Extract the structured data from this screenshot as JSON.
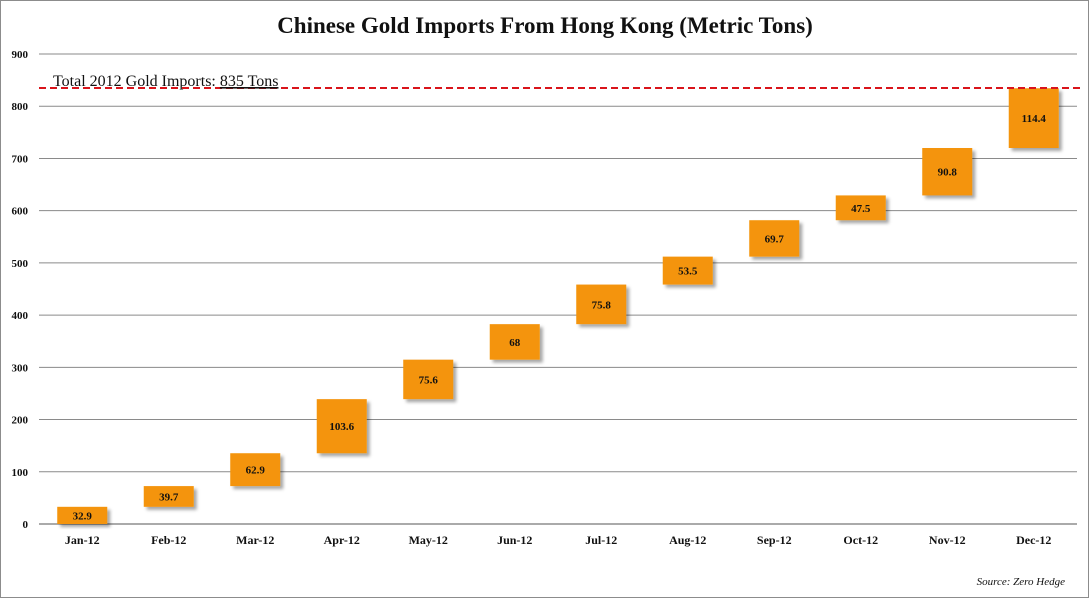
{
  "chart_data": {
    "type": "bar",
    "subtype": "waterfall",
    "title": "Chinese Gold Imports From Hong Kong (Metric Tons)",
    "categories": [
      "Jan-12",
      "Feb-12",
      "Mar-12",
      "Apr-12",
      "May-12",
      "Jun-12",
      "Jul-12",
      "Aug-12",
      "Sep-12",
      "Oct-12",
      "Nov-12",
      "Dec-12"
    ],
    "values": [
      32.9,
      39.7,
      62.9,
      103.6,
      75.6,
      68,
      75.8,
      53.5,
      69.7,
      47.5,
      90.8,
      114.4
    ],
    "value_labels": [
      "32.9",
      "39.7",
      "62.9",
      "103.6",
      "75.6",
      "68",
      "75.8",
      "53.5",
      "69.7",
      "47.5",
      "90.8",
      "114.4"
    ],
    "ylim": [
      0,
      900
    ],
    "yticks": [
      0,
      100,
      200,
      300,
      400,
      500,
      600,
      700,
      800,
      900
    ],
    "ytick_labels": [
      "0",
      "100",
      "200",
      "300",
      "400",
      "500",
      "600",
      "700",
      "800",
      "900"
    ],
    "grid": true,
    "bar_color": "#f4940c",
    "reference_line": {
      "value": 835,
      "color": "#d9141b",
      "style": "dashed"
    },
    "annotation": {
      "prefix": "Total 2012 Gold Imports: ",
      "value_text": "835 Tons"
    },
    "source": "Source: Zero Hedge"
  }
}
